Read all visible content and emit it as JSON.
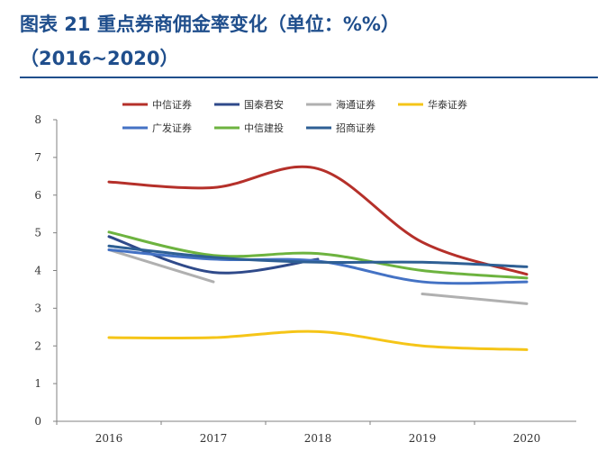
{
  "header": {
    "title_line1": "图表 21    重点券商佣金率变化（单位：%%）",
    "title_line2": "（2016~2020）"
  },
  "chart_data": {
    "type": "line",
    "title": "图表 21    重点券商佣金率变化（单位：%%）（2016~2020）",
    "xlabel": "",
    "ylabel": "",
    "categories": [
      "2016",
      "2017",
      "2018",
      "2019",
      "2020"
    ],
    "ylim": [
      0,
      8
    ],
    "yticks": [
      "0",
      "1",
      "2",
      "3",
      "4",
      "5",
      "6",
      "7",
      "8"
    ],
    "grid": false,
    "legend_position": "top",
    "smooth": true,
    "series": [
      {
        "name": "中信证券",
        "color": "#b5302a",
        "values": [
          6.35,
          6.2,
          6.7,
          4.75,
          3.9
        ]
      },
      {
        "name": "国泰君安",
        "color": "#2f4a8a",
        "values": [
          4.9,
          3.95,
          4.3,
          null,
          null
        ]
      },
      {
        "name": "海通证券",
        "color": "#b0b0b0",
        "values": [
          4.55,
          3.7,
          null,
          3.38,
          3.12
        ]
      },
      {
        "name": "华泰证券",
        "color": "#f5c518",
        "values": [
          2.22,
          2.22,
          2.38,
          2.0,
          1.9
        ]
      },
      {
        "name": "广发证券",
        "color": "#4472c4",
        "values": [
          4.55,
          4.3,
          4.25,
          3.7,
          3.7
        ]
      },
      {
        "name": "中信建投",
        "color": "#6db33f",
        "values": [
          5.02,
          4.4,
          4.45,
          4.0,
          3.8
        ]
      },
      {
        "name": "招商证券",
        "color": "#2e5f94",
        "values": [
          4.65,
          4.35,
          4.22,
          4.22,
          4.1
        ]
      }
    ]
  }
}
